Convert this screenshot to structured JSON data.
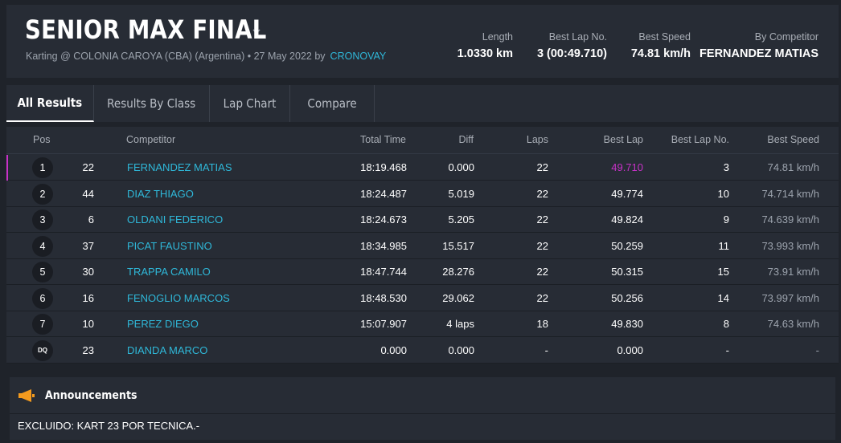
{
  "header": {
    "title": "SENIOR MAX FINAL",
    "subtitle": "Karting @ COLONIA CAROYA (CBA) (Argentina) • 27 May 2022 by",
    "by_link": "CRONOVAY",
    "stats": [
      {
        "label": "Length",
        "value": "1.0330 km"
      },
      {
        "label": "Best Lap No.",
        "value": "3 (00:49.710)"
      },
      {
        "label": "Best Speed",
        "value": "74.81 km/h"
      },
      {
        "label": "By Competitor",
        "value": "FERNANDEZ MATIAS"
      }
    ]
  },
  "tabs": [
    {
      "label": "All Results",
      "active": true
    },
    {
      "label": "Results By Class",
      "active": false
    },
    {
      "label": "Lap Chart",
      "active": false
    },
    {
      "label": "Compare",
      "active": false
    }
  ],
  "table": {
    "columns": {
      "pos": "Pos",
      "competitor": "Competitor",
      "total_time": "Total Time",
      "diff": "Diff",
      "laps": "Laps",
      "best_lap": "Best Lap",
      "best_lap_no": "Best Lap No.",
      "best_speed": "Best Speed"
    },
    "rows": [
      {
        "pos": "1",
        "num": "22",
        "competitor": "FERNANDEZ MATIAS",
        "total_time": "18:19.468",
        "diff": "0.000",
        "laps": "22",
        "best_lap": "49.710",
        "best_lap_no": "3",
        "best_speed": "74.81 km/h"
      },
      {
        "pos": "2",
        "num": "44",
        "competitor": "DIAZ THIAGO",
        "total_time": "18:24.487",
        "diff": "5.019",
        "laps": "22",
        "best_lap": "49.774",
        "best_lap_no": "10",
        "best_speed": "74.714 km/h"
      },
      {
        "pos": "3",
        "num": "6",
        "competitor": "OLDANI FEDERICO",
        "total_time": "18:24.673",
        "diff": "5.205",
        "laps": "22",
        "best_lap": "49.824",
        "best_lap_no": "9",
        "best_speed": "74.639 km/h"
      },
      {
        "pos": "4",
        "num": "37",
        "competitor": "PICAT FAUSTINO",
        "total_time": "18:34.985",
        "diff": "15.517",
        "laps": "22",
        "best_lap": "50.259",
        "best_lap_no": "11",
        "best_speed": "73.993 km/h"
      },
      {
        "pos": "5",
        "num": "30",
        "competitor": "TRAPPA CAMILO",
        "total_time": "18:47.744",
        "diff": "28.276",
        "laps": "22",
        "best_lap": "50.315",
        "best_lap_no": "15",
        "best_speed": "73.91 km/h"
      },
      {
        "pos": "6",
        "num": "16",
        "competitor": "FENOGLIO MARCOS",
        "total_time": "18:48.530",
        "diff": "29.062",
        "laps": "22",
        "best_lap": "50.256",
        "best_lap_no": "14",
        "best_speed": "73.997 km/h"
      },
      {
        "pos": "7",
        "num": "10",
        "competitor": "PEREZ DIEGO",
        "total_time": "15:07.907",
        "diff": "4 laps",
        "laps": "18",
        "best_lap": "49.830",
        "best_lap_no": "8",
        "best_speed": "74.63 km/h"
      },
      {
        "pos": "DQ",
        "num": "23",
        "competitor": "DIANDA MARCO",
        "total_time": "0.000",
        "diff": "0.000",
        "laps": "-",
        "best_lap": "0.000",
        "best_lap_no": "-",
        "best_speed": "-"
      }
    ]
  },
  "announcements": {
    "title": "Announcements",
    "text": "EXCLUIDO: KART 23 POR TECNICA.-",
    "icon": "megaphone-icon"
  },
  "colors": {
    "accent_link": "#2fb8d9",
    "best_lap_highlight": "#c832c8",
    "announcement_icon": "#f39a1e"
  }
}
